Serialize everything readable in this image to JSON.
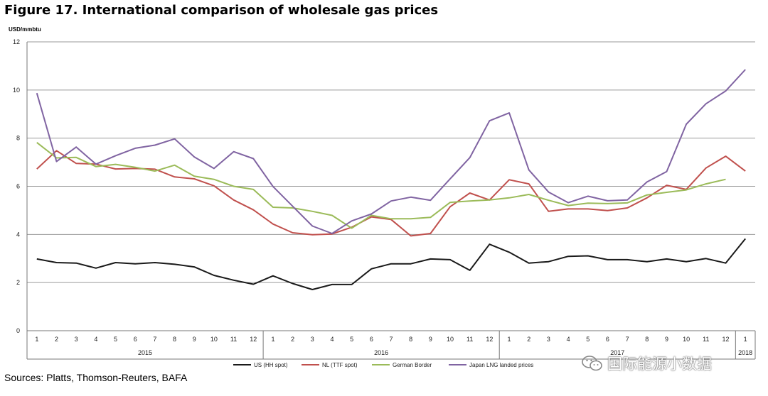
{
  "title": "Figure 17. International comparison of wholesale gas prices",
  "footer": {
    "sources": "Sources: Platts, Thomson-Reuters, BAFA"
  },
  "watermark": {
    "text": "国际能源小数据",
    "icon": "wechat-logo-icon"
  },
  "chart_data": {
    "type": "line",
    "ylabel": "USD/mmbtu",
    "ylim": [
      0,
      12
    ],
    "yticks": [
      0,
      2,
      4,
      6,
      8,
      10,
      12
    ],
    "grid": true,
    "legend_position": "bottom",
    "x": [
      "1",
      "2",
      "3",
      "4",
      "5",
      "6",
      "7",
      "8",
      "9",
      "10",
      "11",
      "12",
      "1",
      "2",
      "3",
      "4",
      "5",
      "6",
      "7",
      "8",
      "9",
      "10",
      "11",
      "12",
      "1",
      "2",
      "3",
      "4",
      "5",
      "6",
      "7",
      "8",
      "9",
      "10",
      "11",
      "12",
      "1"
    ],
    "years": [
      {
        "label": "2015",
        "start": 0,
        "end": 11
      },
      {
        "label": "2016",
        "start": 12,
        "end": 23
      },
      {
        "label": "2017",
        "start": 24,
        "end": 35
      },
      {
        "label": "2018",
        "start": 36,
        "end": 36
      }
    ],
    "series": [
      {
        "name": "US (HH spot)",
        "color": "#1a1a1a",
        "values": [
          2.98,
          2.83,
          2.81,
          2.6,
          2.83,
          2.78,
          2.83,
          2.76,
          2.65,
          2.3,
          2.1,
          1.93,
          2.28,
          1.96,
          1.71,
          1.92,
          1.92,
          2.57,
          2.78,
          2.78,
          2.98,
          2.95,
          2.51,
          3.59,
          3.26,
          2.81,
          2.87,
          3.09,
          3.11,
          2.95,
          2.95,
          2.87,
          2.98,
          2.87,
          3.0,
          2.81,
          3.82
        ]
      },
      {
        "name": "NL (TTF spot)",
        "color": "#c0504d",
        "values": [
          6.72,
          7.48,
          6.95,
          6.92,
          6.72,
          6.74,
          6.71,
          6.39,
          6.31,
          6.02,
          5.43,
          5.02,
          4.43,
          4.07,
          3.99,
          4.02,
          4.3,
          4.73,
          4.62,
          3.94,
          4.04,
          5.15,
          5.72,
          5.43,
          6.27,
          6.1,
          4.96,
          5.06,
          5.06,
          4.99,
          5.1,
          5.52,
          6.04,
          5.87,
          6.76,
          7.25,
          6.63
        ]
      },
      {
        "name": "German Border",
        "color": "#9bbb59",
        "values": [
          7.82,
          7.18,
          7.2,
          6.82,
          6.91,
          6.79,
          6.63,
          6.88,
          6.42,
          6.29,
          6.0,
          5.87,
          5.13,
          5.1,
          4.96,
          4.79,
          4.26,
          4.79,
          4.65,
          4.65,
          4.71,
          5.33,
          5.39,
          5.43,
          5.52,
          5.66,
          5.42,
          5.2,
          5.3,
          5.28,
          5.31,
          5.64,
          5.75,
          5.85,
          6.1,
          6.29,
          null
        ]
      },
      {
        "name": "Japan LNG landed prices",
        "color": "#8064a2",
        "values": [
          9.87,
          7.03,
          7.63,
          6.92,
          7.27,
          7.58,
          7.71,
          7.97,
          7.22,
          6.74,
          7.44,
          7.15,
          5.99,
          5.17,
          4.35,
          4.04,
          4.56,
          4.85,
          5.39,
          5.55,
          5.42,
          6.31,
          7.19,
          8.72,
          9.05,
          6.68,
          5.76,
          5.32,
          5.59,
          5.4,
          5.43,
          6.18,
          6.61,
          8.58,
          9.43,
          9.96,
          10.85
        ]
      }
    ]
  }
}
